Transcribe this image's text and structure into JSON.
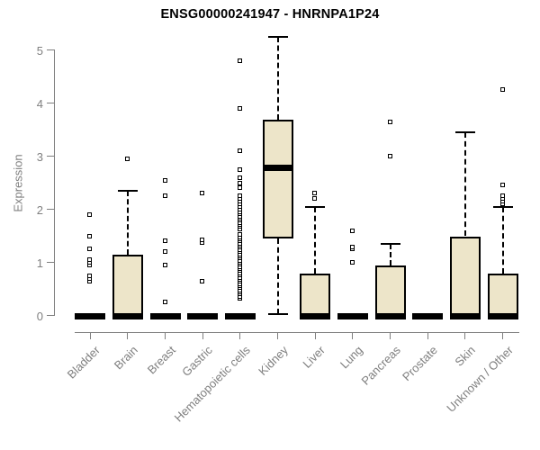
{
  "title": "ENSG00000241947 - HNRNPA1P24",
  "y_axis": {
    "label": "Expression",
    "tick_labels": [
      "0",
      "1",
      "2",
      "3",
      "4",
      "5"
    ]
  },
  "colors": {
    "box_fill": "#EDE5C9",
    "box_border": "#000000",
    "axis": "#7F7F7F",
    "tick_text": "#7F7F7F",
    "title_text": "#000000",
    "background": "#FFFFFF"
  },
  "chart_data": {
    "type": "boxplot",
    "title": "ENSG00000241947 - HNRNPA1P24",
    "xlabel": "",
    "ylabel": "Expression",
    "ylim": [
      0,
      5.3
    ],
    "grid": false,
    "legend": false,
    "categories": [
      "Bladder",
      "Brain",
      "Breast",
      "Gastric",
      "Hematopoietic cells",
      "Kidney",
      "Liver",
      "Lung",
      "Pancreas",
      "Prostate",
      "Skin",
      "Unknown / Other"
    ],
    "boxes": [
      {
        "category": "Bladder",
        "q1": 0,
        "median": 0,
        "q3": 0,
        "whisker_low": 0,
        "whisker_high": 0,
        "outliers": [
          0.65,
          0.7,
          0.75,
          0.95,
          1.0,
          1.05,
          1.25,
          1.5,
          1.9
        ]
      },
      {
        "category": "Brain",
        "q1": 0,
        "median": 0,
        "q3": 1.15,
        "whisker_low": 0,
        "whisker_high": 2.35,
        "outliers": [
          2.95
        ]
      },
      {
        "category": "Breast",
        "q1": 0,
        "median": 0,
        "q3": 0,
        "whisker_low": 0,
        "whisker_high": 0,
        "outliers": [
          0.25,
          0.95,
          1.2,
          1.4,
          2.25,
          2.55
        ]
      },
      {
        "category": "Gastric",
        "q1": 0,
        "median": 0,
        "q3": 0,
        "whisker_low": 0,
        "whisker_high": 0,
        "outliers": [
          0.65,
          1.38,
          1.42,
          2.3
        ]
      },
      {
        "category": "Hematopoietic cells",
        "q1": 0,
        "median": 0,
        "q3": 0,
        "whisker_low": 0,
        "whisker_high": 0,
        "outliers": [
          0.32,
          0.36,
          0.4,
          0.44,
          0.48,
          0.52,
          0.56,
          0.6,
          0.64,
          0.68,
          0.72,
          0.76,
          0.8,
          0.84,
          0.88,
          0.92,
          0.96,
          1.0,
          1.04,
          1.08,
          1.12,
          1.16,
          1.2,
          1.24,
          1.28,
          1.32,
          1.36,
          1.4,
          1.44,
          1.48,
          1.52,
          1.63,
          1.67,
          1.71,
          1.75,
          1.79,
          1.83,
          1.87,
          1.91,
          1.95,
          2.0,
          2.05,
          2.1,
          2.15,
          2.2,
          2.25,
          2.4,
          2.5,
          2.6,
          2.75,
          3.1,
          3.9,
          4.8
        ]
      },
      {
        "category": "Kidney",
        "q1": 1.45,
        "median": 2.8,
        "q3": 3.7,
        "whisker_low": 0.03,
        "whisker_high": 5.25,
        "outliers": []
      },
      {
        "category": "Liver",
        "q1": 0,
        "median": 0,
        "q3": 0.8,
        "whisker_low": 0,
        "whisker_high": 2.05,
        "outliers": [
          2.2,
          2.3
        ]
      },
      {
        "category": "Lung",
        "q1": 0,
        "median": 0,
        "q3": 0,
        "whisker_low": 0,
        "whisker_high": 0,
        "outliers": [
          1.0,
          1.25,
          1.28,
          1.6
        ]
      },
      {
        "category": "Pancreas",
        "q1": 0,
        "median": 0,
        "q3": 0.95,
        "whisker_low": 0,
        "whisker_high": 1.35,
        "outliers": [
          3.0,
          3.65
        ]
      },
      {
        "category": "Prostate",
        "q1": 0,
        "median": 0,
        "q3": 0,
        "whisker_low": 0,
        "whisker_high": 0,
        "outliers": []
      },
      {
        "category": "Skin",
        "q1": 0,
        "median": 0,
        "q3": 1.5,
        "whisker_low": 0,
        "whisker_high": 3.45,
        "outliers": []
      },
      {
        "category": "Unknown / Other",
        "q1": 0,
        "median": 0,
        "q3": 0.8,
        "whisker_low": 0,
        "whisker_high": 2.05,
        "outliers": [
          2.1,
          2.15,
          2.2,
          2.25,
          2.45,
          4.25
        ]
      }
    ]
  }
}
